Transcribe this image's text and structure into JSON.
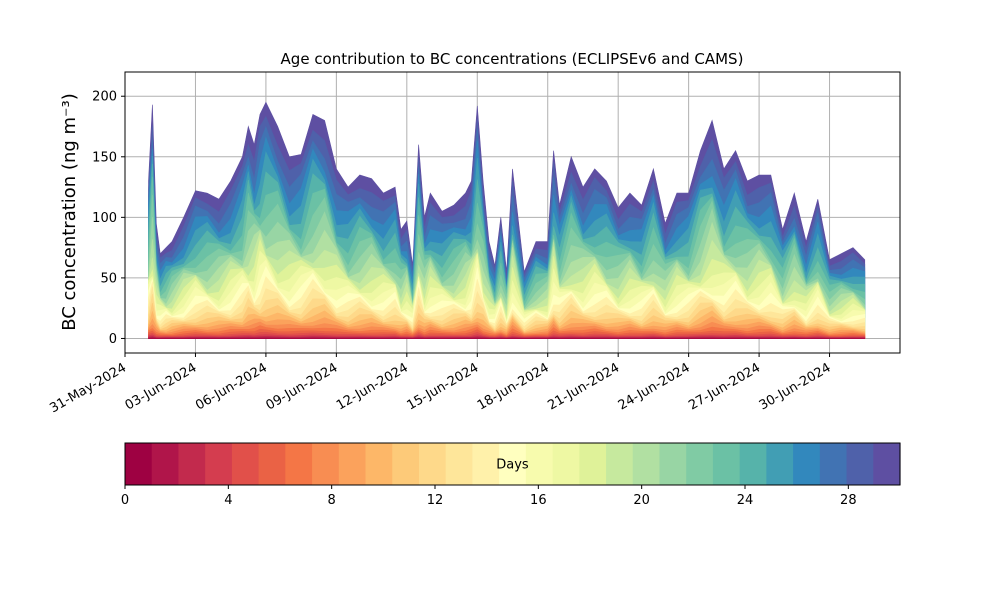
{
  "chart_data": {
    "type": "area",
    "title": "Age contribution to BC concentrations (ECLIPSEv6 and CAMS)",
    "xlabel": "",
    "ylabel": "BC concentration (ng m⁻³)",
    "ylim": [
      -12,
      220
    ],
    "xlim": [
      "2024-05-31",
      "2024-07-03"
    ],
    "grid": true,
    "stacked": true,
    "x_ticks": [
      "31-May-2024",
      "03-Jun-2024",
      "06-Jun-2024",
      "09-Jun-2024",
      "12-Jun-2024",
      "15-Jun-2024",
      "18-Jun-2024",
      "21-Jun-2024",
      "24-Jun-2024",
      "27-Jun-2024",
      "30-Jun-2024"
    ],
    "y_ticks": [
      0,
      50,
      100,
      150,
      200
    ],
    "total_series": {
      "name": "",
      "dates": [
        "2024-06-01T00:00",
        "2024-06-01T04:00",
        "2024-06-01T08:00",
        "2024-06-01T12:00",
        "2024-06-01T18:00",
        "2024-06-02T00:00",
        "2024-06-02T12:00",
        "2024-06-03T00:00",
        "2024-06-03T12:00",
        "2024-06-04T00:00",
        "2024-06-04T12:00",
        "2024-06-05T00:00",
        "2024-06-05T06:00",
        "2024-06-05T12:00",
        "2024-06-05T18:00",
        "2024-06-06T00:00",
        "2024-06-06T12:00",
        "2024-06-07T00:00",
        "2024-06-07T12:00",
        "2024-06-08T00:00",
        "2024-06-08T12:00",
        "2024-06-09T00:00",
        "2024-06-09T12:00",
        "2024-06-10T00:00",
        "2024-06-10T12:00",
        "2024-06-11T00:00",
        "2024-06-11T12:00",
        "2024-06-11T18:00",
        "2024-06-12T00:00",
        "2024-06-12T06:00",
        "2024-06-12T12:00",
        "2024-06-12T18:00",
        "2024-06-13T00:00",
        "2024-06-13T12:00",
        "2024-06-14T00:00",
        "2024-06-14T12:00",
        "2024-06-14T18:00",
        "2024-06-15T00:00",
        "2024-06-15T06:00",
        "2024-06-15T12:00",
        "2024-06-15T18:00",
        "2024-06-16T00:00",
        "2024-06-16T06:00",
        "2024-06-16T12:00",
        "2024-06-17T00:00",
        "2024-06-17T12:00",
        "2024-06-18T00:00",
        "2024-06-18T06:00",
        "2024-06-18T12:00",
        "2024-06-19T00:00",
        "2024-06-19T12:00",
        "2024-06-20T00:00",
        "2024-06-20T12:00",
        "2024-06-21T00:00",
        "2024-06-21T12:00",
        "2024-06-22T00:00",
        "2024-06-22T12:00",
        "2024-06-23T00:00",
        "2024-06-23T12:00",
        "2024-06-24T00:00",
        "2024-06-24T12:00",
        "2024-06-25T00:00",
        "2024-06-25T12:00",
        "2024-06-26T00:00",
        "2024-06-26T12:00",
        "2024-06-27T00:00",
        "2024-06-27T12:00",
        "2024-06-28T00:00",
        "2024-06-28T12:00",
        "2024-06-29T00:00",
        "2024-06-29T12:00",
        "2024-06-30T00:00",
        "2024-06-30T12:00",
        "2024-07-01T00:00",
        "2024-07-01T12:00"
      ],
      "values": [
        130,
        193,
        95,
        70,
        75,
        80,
        100,
        122,
        120,
        115,
        130,
        150,
        175,
        160,
        185,
        195,
        175,
        150,
        152,
        185,
        180,
        140,
        125,
        135,
        132,
        120,
        125,
        90,
        97,
        60,
        160,
        100,
        120,
        105,
        110,
        120,
        130,
        192,
        130,
        80,
        60,
        100,
        55,
        140,
        55,
        80,
        80,
        155,
        110,
        150,
        125,
        140,
        130,
        108,
        120,
        110,
        140,
        95,
        120,
        120,
        155,
        180,
        140,
        155,
        130,
        135,
        135,
        90,
        120,
        80,
        115,
        65,
        70,
        75,
        65
      ]
    },
    "colorbar": {
      "label": "Days",
      "min": 0,
      "max": 30,
      "ticks": [
        0,
        4,
        8,
        12,
        16,
        20,
        24,
        28
      ],
      "colors": [
        "#9e0142",
        "#b0154a",
        "#c22a4d",
        "#d43d4f",
        "#e1504a",
        "#ea6245",
        "#f47646",
        "#f88d52",
        "#fba25c",
        "#fdb768",
        "#fdca79",
        "#fed98a",
        "#fee69a",
        "#fff1aa",
        "#ffffbf",
        "#f7fbad",
        "#eef8a3",
        "#dff299",
        "#c6e99e",
        "#b1e0a2",
        "#98d5a4",
        "#80cba4",
        "#6bc1a5",
        "#56b3aa",
        "#419eb4",
        "#3288bd",
        "#4173b3",
        "#4f61aa",
        "#5e4fa2"
      ]
    }
  }
}
